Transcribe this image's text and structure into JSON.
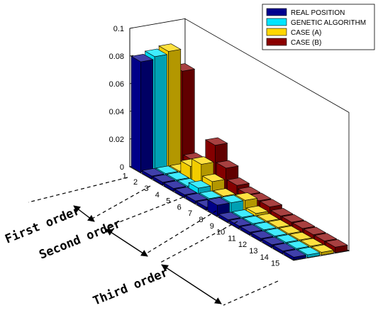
{
  "chart_data": {
    "type": "bar3d",
    "title": "",
    "xlabel": "",
    "ylabel": "",
    "zlim": [
      0,
      0.1
    ],
    "z_ticks": [
      "0",
      "0.02",
      "0.04",
      "0.06",
      "0.08",
      "0.1"
    ],
    "categories": [
      "1",
      "2",
      "3",
      "4",
      "5",
      "6",
      "7",
      "8",
      "9",
      "10",
      "11",
      "12",
      "13",
      "14",
      "15"
    ],
    "series": [
      {
        "name": "REAL POSITION",
        "color": "#00008f",
        "values": [
          0.08,
          0.002,
          0.002,
          0.002,
          0.002,
          0.002,
          0.002,
          0.008,
          0.002,
          0.002,
          0.002,
          0.002,
          0.002,
          0.002,
          0.002
        ]
      },
      {
        "name": "GENETIC ALGORITHM",
        "color": "#00e5ff",
        "values": [
          0.082,
          0.002,
          0.002,
          0.002,
          0.005,
          0.002,
          0.002,
          0.008,
          0.002,
          0.002,
          0.002,
          0.002,
          0.002,
          0.002,
          0.002
        ]
      },
      {
        "name": "CASE (A)",
        "color": "#ffd700",
        "values": [
          0.084,
          0.002,
          0.01,
          0.016,
          0.008,
          0.002,
          0.002,
          0.008,
          0.003,
          0.002,
          0.002,
          0.002,
          0.002,
          0.002,
          0.002
        ]
      },
      {
        "name": "CASE (B)",
        "color": "#8b0000",
        "values": [
          0.068,
          0.008,
          0.006,
          0.028,
          0.016,
          0.008,
          0.006,
          0.006,
          0.006,
          0.004,
          0.004,
          0.004,
          0.004,
          0.004,
          0.004
        ]
      }
    ],
    "legend": "top-right",
    "annotations": [
      "First order",
      "Second order",
      "Third order"
    ]
  }
}
